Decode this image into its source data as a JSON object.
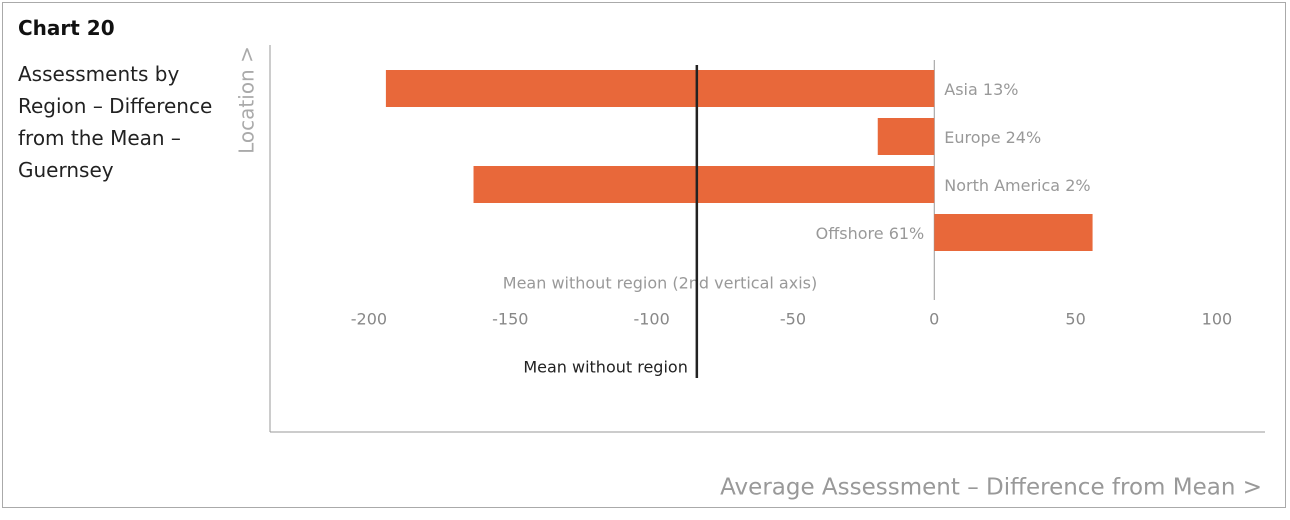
{
  "chart_data": {
    "type": "bar",
    "orientation": "horizontal",
    "title": "Chart 20",
    "subtitle": "Assessments by Region – Difference from the Mean – Guernsey",
    "ylabel": "Location >",
    "xlabel": "Average Assessment – Difference from Mean >",
    "categories": [
      "Asia 13%",
      "Europe 24%",
      "North America 2%",
      "Offshore 61%"
    ],
    "values": [
      -194,
      -20,
      -163,
      56
    ],
    "color": "#e8683a",
    "xlim": [
      -235,
      117
    ],
    "xticks": [
      -200,
      -150,
      -100,
      -50,
      0,
      50,
      100
    ],
    "mean_line": {
      "value": -84,
      "label": "Mean without region",
      "legend_label": "Mean without region (2nd vertical axis)",
      "color": "#222222"
    }
  }
}
